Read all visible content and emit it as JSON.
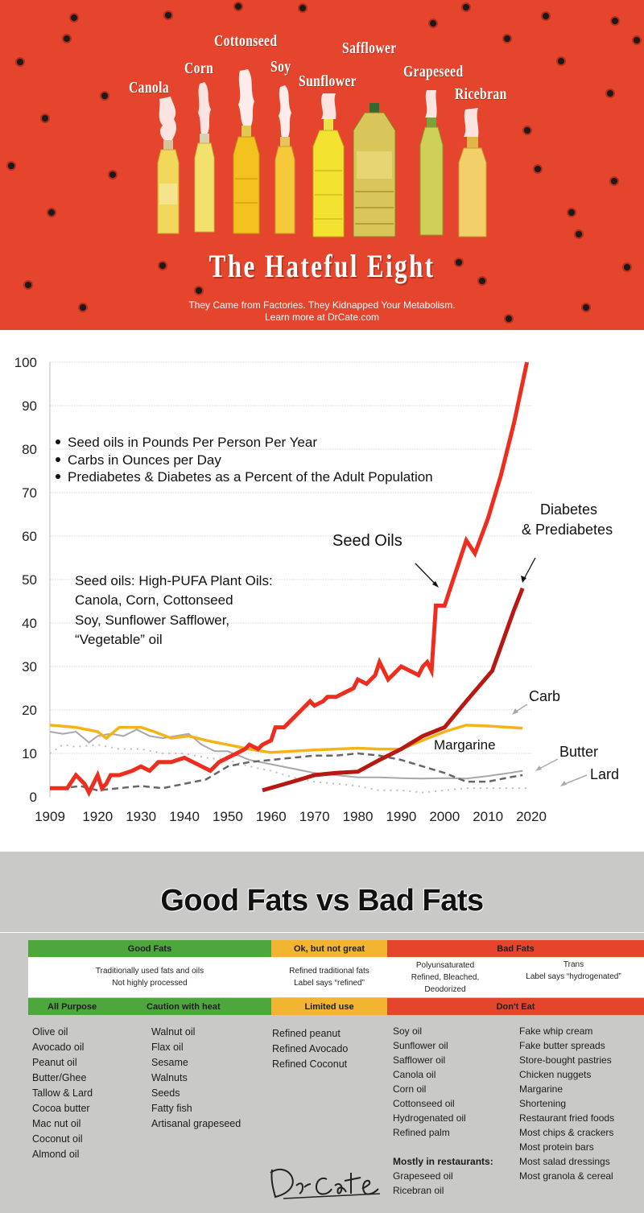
{
  "banner": {
    "oils": [
      "Canola",
      "Corn",
      "Cottonseed",
      "Soy",
      "Sunflower",
      "Safflower",
      "Grapeseed",
      "Ricebran"
    ],
    "title": "The Hateful Eight",
    "subtitle1": "They Came from Factories. They Kidnapped Your Metabolism.",
    "subtitle2": "Learn more at DrCate.com",
    "colors": {
      "background": "#e5442d"
    }
  },
  "chart_data": {
    "type": "line",
    "ylim": [
      0,
      100
    ],
    "xlim": [
      1909,
      2020
    ],
    "y_ticks": [
      "0",
      "10",
      "20",
      "30",
      "40",
      "50",
      "60",
      "70",
      "80",
      "90",
      "100"
    ],
    "x_ticks": [
      "1909",
      "1920",
      "1930",
      "1940",
      "1950",
      "1960",
      "1970",
      "1980",
      "1990",
      "2000",
      "2010",
      "2020"
    ],
    "legend_bullets": [
      "Seed oils in Pounds Per Person Per Year",
      "Carbs in Ounces per Day",
      "Prediabetes & Diabetes as a Percent of the Adult Population"
    ],
    "note_lines": [
      "Seed oils: High-PUFA Plant Oils:",
      "Canola, Corn, Cottonseed",
      "Soy, Sunflower Safflower,",
      "“Vegetable” oil"
    ],
    "series": [
      {
        "name": "Seed Oils",
        "color": "#ee2d1e",
        "style": "solid",
        "x": [
          1909,
          1913,
          1915,
          1917,
          1918,
          1920,
          1921,
          1922,
          1923,
          1925,
          1928,
          1930,
          1932,
          1934,
          1937,
          1940,
          1942,
          1944,
          1946,
          1948,
          1950,
          1952,
          1954,
          1955,
          1957,
          1958,
          1960,
          1961,
          1963,
          1965,
          1967,
          1969,
          1970,
          1972,
          1973,
          1975,
          1977,
          1979,
          1980,
          1982,
          1984,
          1985,
          1987,
          1989,
          1990,
          1992,
          1994,
          1995,
          1996,
          1997,
          1998,
          2000,
          2002,
          2004,
          2005,
          2007,
          2010,
          2013,
          2016,
          2019
        ],
        "y": [
          2,
          2,
          5,
          3,
          1,
          5,
          2,
          3,
          5,
          5,
          6,
          7,
          6,
          8,
          8,
          9,
          8,
          7,
          6,
          8,
          9,
          10,
          11,
          12,
          11,
          12,
          13,
          16,
          16,
          18,
          20,
          22,
          21,
          22,
          23,
          23,
          24,
          25,
          27,
          26,
          28,
          31,
          27,
          29,
          30,
          29,
          28,
          30,
          31,
          29,
          44,
          44,
          50,
          56,
          59,
          56,
          64,
          74,
          86,
          100
        ]
      },
      {
        "name": "Diabetes & Prediabetes",
        "color": "#b81812",
        "style": "solid",
        "x": [
          1958,
          1965,
          1970,
          1975,
          1980,
          1985,
          1990,
          1995,
          2000,
          2005,
          2011,
          2016,
          2018
        ],
        "y": [
          1.5,
          3.5,
          5,
          5.5,
          5.8,
          8.5,
          11,
          14,
          16,
          22,
          29,
          43,
          48
        ]
      },
      {
        "name": "Carb",
        "color": "#f4b417",
        "style": "solid",
        "x": [
          1909,
          1915,
          1920,
          1922,
          1925,
          1930,
          1933,
          1937,
          1941,
          1945,
          1950,
          1955,
          1958,
          1960,
          1965,
          1970,
          1975,
          1980,
          1985,
          1990,
          1995,
          2000,
          2005,
          2010,
          2015,
          2018
        ],
        "y": [
          16.5,
          16,
          15,
          13.5,
          16,
          16,
          15,
          13.5,
          14,
          13,
          12,
          11,
          10.5,
          10.2,
          10.5,
          10.8,
          11,
          11.2,
          11,
          11,
          13,
          15,
          16.5,
          16.3,
          16,
          15.8
        ]
      },
      {
        "name": "Margarine",
        "color": "#666666",
        "style": "dashed",
        "x": [
          1909,
          1912,
          1916,
          1920,
          1925,
          1930,
          1935,
          1940,
          1945,
          1950,
          1955,
          1960,
          1965,
          1970,
          1975,
          1980,
          1985,
          1990,
          1995,
          2000,
          2005,
          2010,
          2015,
          2018
        ],
        "y": [
          2,
          2,
          2.5,
          1.5,
          2,
          2.5,
          2,
          3,
          4,
          7,
          8,
          8.5,
          9,
          9.5,
          9.5,
          10,
          9.5,
          8.5,
          7,
          5.5,
          3.5,
          3.5,
          4.5,
          5
        ]
      },
      {
        "name": "Butter",
        "color": "#a8a8a8",
        "style": "solid",
        "x": [
          1909,
          1912,
          1915,
          1918,
          1920,
          1923,
          1926,
          1929,
          1932,
          1935,
          1938,
          1941,
          1944,
          1947,
          1950,
          1955,
          1960,
          1965,
          1970,
          1975,
          1980,
          1985,
          1990,
          1995,
          2000,
          2005,
          2010,
          2015,
          2018
        ],
        "y": [
          15,
          14.5,
          15,
          12.5,
          14,
          14.5,
          14,
          15.5,
          14,
          13.5,
          14,
          14.5,
          12,
          10.5,
          10.5,
          8.5,
          7.5,
          6.5,
          5.5,
          5,
          4.5,
          4.5,
          4.3,
          4.2,
          4.3,
          4.2,
          4.8,
          5.5,
          6
        ]
      },
      {
        "name": "Lard",
        "color": "#bdbdbd",
        "style": "dotted",
        "x": [
          1909,
          1912,
          1915,
          1920,
          1925,
          1930,
          1935,
          1940,
          1945,
          1950,
          1955,
          1960,
          1965,
          1970,
          1975,
          1980,
          1985,
          1990,
          1995,
          2000,
          2005,
          2010,
          2015,
          2020
        ],
        "y": [
          10,
          12,
          11.5,
          12,
          11,
          11,
          10,
          10,
          9,
          8.5,
          7,
          6,
          4.5,
          3.5,
          3,
          2.5,
          1.5,
          1.5,
          1,
          1.5,
          2,
          2,
          2,
          2
        ]
      }
    ],
    "labels": [
      {
        "text": "Seed Oils"
      },
      {
        "text": "Diabetes"
      },
      {
        "text": "& Prediabetes"
      },
      {
        "text": "Carb"
      },
      {
        "text": "Margarine"
      },
      {
        "text": "Butter"
      },
      {
        "text": "Lard"
      }
    ],
    "grid": true
  },
  "fats": {
    "title": "Good Fats vs Bad Fats",
    "headers": {
      "good": "Good Fats",
      "ok": "Ok, but not great",
      "bad": "Bad Fats",
      "all_purpose": "All Purpose",
      "caution": "Caution with heat",
      "limited": "Limited use",
      "dont_eat": "Don't Eat"
    },
    "descriptions": {
      "good_1": "Traditionally used fats and oils",
      "good_2": "Not highly processed",
      "ok_1": "Refined traditional fats",
      "ok_2": "Label says “refined”",
      "poly_1": "Polyunsaturated",
      "poly_2": "Refined, Bleached,",
      "poly_3": "Deodorized",
      "trans_1": "Trans",
      "trans_2": "Label says “hydrogenated”"
    },
    "all_purpose": [
      "Olive oil",
      "Avocado oil",
      "Peanut oil",
      "Butter/Ghee",
      "Tallow & Lard",
      "Cocoa butter",
      "Mac nut oil",
      "Coconut oil",
      "Almond oil"
    ],
    "caution": [
      "Walnut oil",
      "Flax oil",
      "Sesame",
      "Walnuts",
      "Seeds",
      "Fatty fish",
      "Artisanal grapeseed"
    ],
    "limited": [
      "Refined peanut",
      "Refined Avocado",
      "Refined Coconut"
    ],
    "polyunsaturated": [
      "Soy oil",
      "Sunflower oil",
      "Safflower oil",
      "Canola oil",
      "Corn oil",
      "Cottonseed oil",
      "Hydrogenated oil",
      "Refined palm"
    ],
    "restaurants_label": "Mostly in restaurants:",
    "restaurants": [
      "Grapeseed oil",
      "Ricebran oil"
    ],
    "trans": [
      "Fake whip cream",
      "Fake butter spreads",
      "Store-bought pastries",
      "Chicken nuggets",
      "Margarine",
      "Shortening",
      "Restaurant fried foods",
      "Most chips & crackers",
      "Most protein bars",
      "Most salad dressings",
      "Most granola & cereal"
    ],
    "colors": {
      "green": "#4ea73c",
      "yellow": "#f3b430",
      "red": "#e4452b",
      "panel": "#c9c9c7"
    }
  }
}
